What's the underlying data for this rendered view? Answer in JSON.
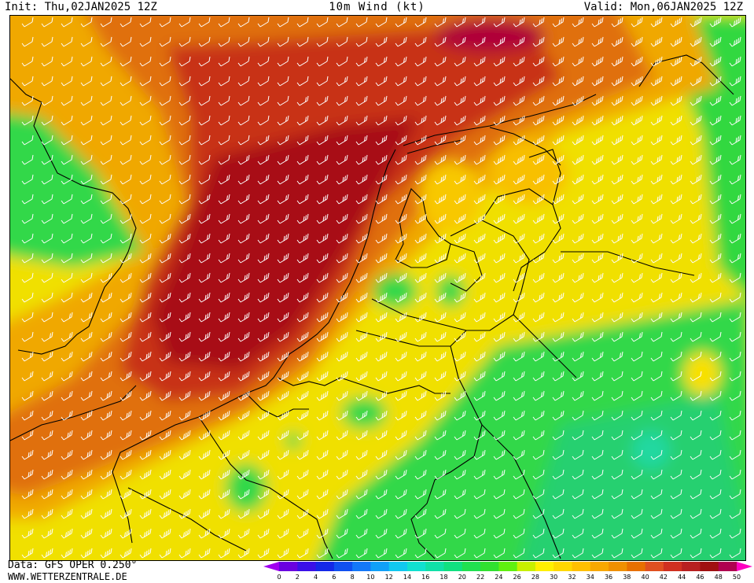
{
  "header": {
    "init": "Init: Thu,02JAN2025 12Z",
    "title": "10m Wind (kt)",
    "valid": "Valid: Mon,06JAN2025 12Z"
  },
  "footer": {
    "data_source": "Data: GFS OPER 0.250°",
    "site": "WWW.WETTERZENTRALE.DE"
  },
  "legend": {
    "unit": "kt",
    "ticks": [
      "0",
      "2",
      "4",
      "6",
      "8",
      "10",
      "12",
      "14",
      "16",
      "18",
      "20",
      "22",
      "24",
      "26",
      "28",
      "30",
      "32",
      "34",
      "36",
      "38",
      "40",
      "42",
      "44",
      "46",
      "48",
      "50"
    ],
    "colors": [
      "#6a00e0",
      "#3a10e8",
      "#1428e8",
      "#1050f0",
      "#1478f8",
      "#10a0f8",
      "#10c8f0",
      "#10e0d0",
      "#10e0a8",
      "#10e080",
      "#20e050",
      "#30e030",
      "#60f010",
      "#c8f000",
      "#fff000",
      "#ffd800",
      "#ffc000",
      "#f8a800",
      "#f09000",
      "#e87000",
      "#e05020",
      "#d03020",
      "#b82020",
      "#a01010",
      "#b00050",
      "#d00070"
    ],
    "under_color": "#a000f0",
    "over_color": "#ff00c0"
  },
  "map": {
    "region": "Netherlands",
    "wind_barb_color": "#ffffff",
    "coastline_color": "#000000"
  }
}
